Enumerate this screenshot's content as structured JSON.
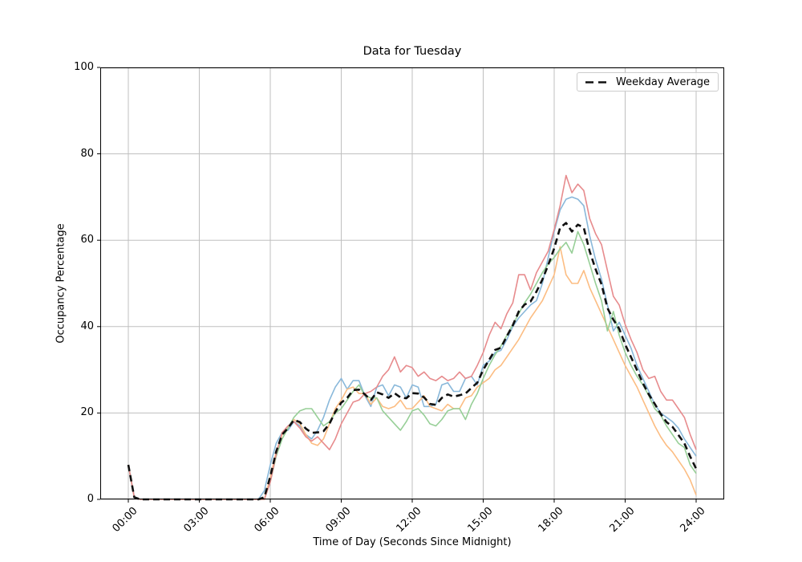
{
  "chart_data": {
    "type": "line",
    "title": "Data for Tuesday",
    "xlabel": "Time of Day (Seconds Since Midnight)",
    "ylabel": "Occupancy Percentage",
    "legend": {
      "label": "Weekday Average",
      "position": "upper right"
    },
    "grid": true,
    "grid_color": "#bfbfbf",
    "ylim": [
      0,
      100
    ],
    "x_range_hours": [
      0,
      24
    ],
    "x_step_hours": 0.25,
    "x_ticks": [
      {
        "label": "00:00",
        "hours": 0
      },
      {
        "label": "03:00",
        "hours": 3
      },
      {
        "label": "06:00",
        "hours": 6
      },
      {
        "label": "09:00",
        "hours": 9
      },
      {
        "label": "12:00",
        "hours": 12
      },
      {
        "label": "15:00",
        "hours": 15
      },
      {
        "label": "18:00",
        "hours": 18
      },
      {
        "label": "21:00",
        "hours": 21
      },
      {
        "label": "24:00",
        "hours": 24
      }
    ],
    "y_ticks": [
      {
        "label": "0",
        "value": 0
      },
      {
        "label": "20",
        "value": 20
      },
      {
        "label": "40",
        "value": 40
      },
      {
        "label": "60",
        "value": 60
      },
      {
        "label": "80",
        "value": 80
      },
      {
        "label": "100",
        "value": 100
      }
    ],
    "series": [
      {
        "key": "day-line-blue",
        "color": "#89b8da",
        "width": 1.6,
        "dashed": false,
        "values": [
          8,
          0.5,
          0,
          0,
          0,
          0,
          0,
          0,
          0,
          0,
          0,
          0,
          0,
          0,
          0,
          0,
          0,
          0,
          0,
          0,
          0,
          0,
          0,
          2,
          8,
          13,
          15.5,
          16,
          18,
          17,
          15,
          14,
          16,
          19,
          23,
          26,
          28,
          25.5,
          27.5,
          27.5,
          24,
          21.5,
          26,
          26.5,
          24,
          26.5,
          26,
          23.5,
          26.5,
          26,
          21.5,
          21.5,
          22,
          26.5,
          27,
          25,
          25,
          28,
          28.5,
          26.5,
          31,
          32,
          34,
          34.5,
          37,
          40,
          42,
          43.5,
          45,
          46,
          50,
          56,
          62,
          67,
          69.5,
          70,
          69.5,
          68,
          61,
          55.5,
          51,
          45,
          39,
          41,
          38,
          35,
          31,
          28,
          25,
          22,
          20,
          19,
          18,
          16.5,
          14,
          12,
          10
        ]
      },
      {
        "key": "day-line-orange",
        "color": "#fcbd83",
        "width": 1.6,
        "dashed": false,
        "values": [
          8,
          0.5,
          0,
          0,
          0,
          0,
          0,
          0,
          0,
          0,
          0,
          0,
          0,
          0,
          0,
          0,
          0,
          0,
          0,
          0,
          0,
          0,
          0,
          0,
          5,
          11,
          15,
          16.5,
          18.5,
          17.5,
          15,
          13,
          12.5,
          14,
          17.5,
          21,
          23,
          25.5,
          26,
          24.5,
          24.5,
          22,
          23.5,
          21.5,
          21,
          21.5,
          23,
          21,
          21,
          22.5,
          24,
          21.5,
          21,
          20.5,
          22,
          21,
          21,
          23.5,
          24,
          26,
          27,
          28,
          30,
          31,
          33,
          35,
          37,
          39.5,
          42,
          44,
          46,
          49,
          52,
          58.5,
          52,
          50,
          50,
          53,
          49,
          46,
          43,
          40,
          37,
          34,
          31,
          28.5,
          26,
          23,
          20,
          17,
          14.5,
          12.5,
          11,
          9,
          7,
          4.5,
          1
        ]
      },
      {
        "key": "day-line-green",
        "color": "#97cf97",
        "width": 1.6,
        "dashed": false,
        "values": [
          8,
          0.5,
          0,
          0,
          0,
          0,
          0,
          0,
          0,
          0,
          0,
          0,
          0,
          0,
          0,
          0,
          0,
          0,
          0,
          0,
          0,
          0,
          0,
          0,
          4,
          10,
          14,
          16.5,
          19,
          20.5,
          21,
          21,
          19,
          17,
          18,
          20,
          21,
          23,
          25,
          26.5,
          24,
          23.5,
          23.5,
          20.5,
          19,
          17.5,
          16,
          18,
          20.5,
          21,
          19.5,
          17.5,
          17,
          18.5,
          20.5,
          21,
          21,
          18.5,
          22,
          24.5,
          28,
          31,
          33.5,
          35.5,
          38,
          40.5,
          43,
          45.5,
          47.5,
          50,
          52.5,
          54.5,
          56,
          58,
          59.5,
          57,
          62,
          59,
          54.5,
          50,
          46,
          39,
          43.5,
          38,
          34,
          31,
          28.5,
          26.5,
          24,
          21,
          19.5,
          17,
          15,
          13,
          12,
          8,
          6
        ]
      },
      {
        "key": "day-line-red",
        "color": "#e78b8d",
        "width": 1.6,
        "dashed": false,
        "values": [
          8,
          0.5,
          0,
          0,
          0,
          0,
          0,
          0,
          0,
          0,
          0,
          0,
          0,
          0,
          0,
          0,
          0,
          0,
          0,
          0,
          0,
          0,
          0,
          0,
          4,
          10.5,
          15.5,
          17,
          18,
          16.5,
          14.5,
          13.5,
          14.5,
          13,
          11.5,
          14,
          17.5,
          20,
          22.5,
          23,
          24.5,
          25,
          26,
          28.5,
          30,
          33,
          29.5,
          31,
          30.5,
          28.5,
          29.5,
          28,
          27.5,
          28.5,
          27.5,
          28,
          29.5,
          28,
          28.5,
          31,
          34,
          38,
          41,
          39.5,
          43,
          45.5,
          52,
          52,
          48.5,
          52.5,
          55,
          57.5,
          62.5,
          68,
          75,
          71,
          73,
          71.5,
          65,
          61.5,
          59,
          53,
          47,
          45,
          40.5,
          37,
          34,
          30,
          28,
          28.5,
          25,
          23,
          23,
          21,
          19,
          15,
          11.5
        ]
      },
      {
        "key": "weekday-average",
        "color": "#111111",
        "width": 2.6,
        "dashed": true,
        "legend_label": "Weekday Average",
        "values": [
          8,
          0.5,
          0,
          0,
          0,
          0,
          0,
          0,
          0,
          0,
          0,
          0,
          0,
          0,
          0,
          0,
          0,
          0,
          0,
          0,
          0,
          0,
          0,
          0.5,
          5.3,
          11.1,
          15,
          16.5,
          18.4,
          17.9,
          16.4,
          15.4,
          15.5,
          15.8,
          17.5,
          20.3,
          22.4,
          23.5,
          25.3,
          25.4,
          24.3,
          23,
          24.8,
          24.3,
          23.5,
          24.6,
          23.6,
          23.4,
          24.6,
          24.5,
          23.6,
          22.1,
          21.9,
          23.5,
          24.3,
          23.8,
          24.1,
          24.5,
          25.8,
          27,
          30,
          32.3,
          34.6,
          35.1,
          37.8,
          40.3,
          43.5,
          45.1,
          45.8,
          48.1,
          50.9,
          54.3,
          58.1,
          62.9,
          64,
          62,
          63.6,
          62.9,
          57.4,
          53.3,
          49.8,
          44.3,
          41.6,
          39.5,
          35.9,
          32.9,
          29.9,
          26.9,
          24.3,
          22.1,
          19.8,
          17.9,
          16.8,
          14.9,
          13,
          9.9,
          7.1
        ]
      }
    ]
  }
}
